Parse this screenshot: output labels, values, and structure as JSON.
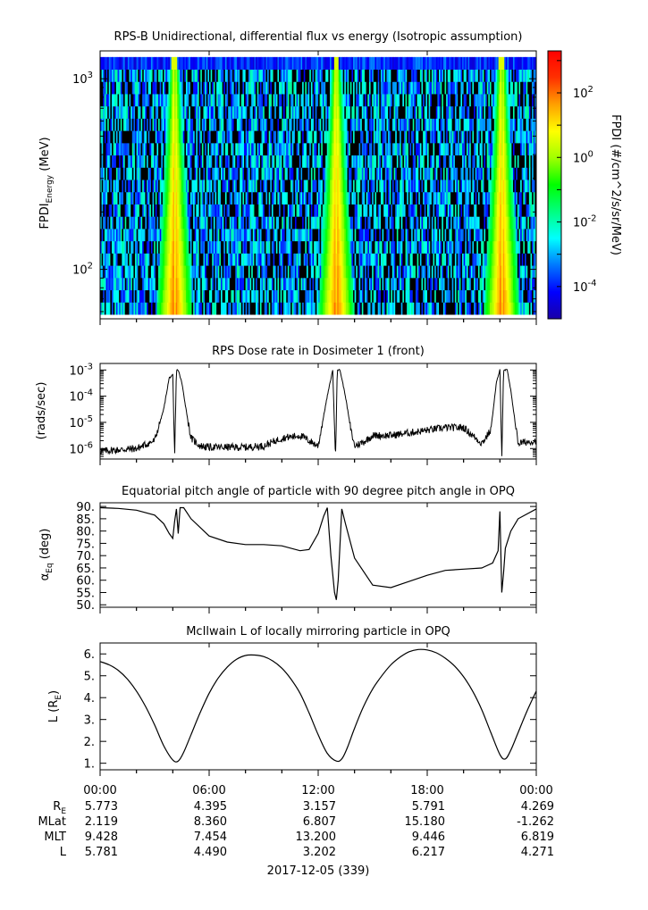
{
  "colors": {
    "background": "#ffffff",
    "ink": "#000000",
    "spectrogram_dark": "#000000",
    "colorbar_stops": [
      "#1a00a8",
      "#0000ff",
      "#0078ff",
      "#00ffff",
      "#00ff80",
      "#00ff00",
      "#a0ff00",
      "#ffff00",
      "#ffa000",
      "#ff3000",
      "#ff0000"
    ]
  },
  "chart_data": [
    {
      "id": "panel-flux",
      "type": "heatmap",
      "title": "RPS-B  Unidirectional, differential flux vs energy (Isotropic assumption)",
      "ylabel": "FPDI",
      "ylabel_sub": "Energy",
      "ylabel_unit": "(MeV)",
      "yscale": "log",
      "ylim": [
        55,
        1400
      ],
      "yticks": [
        {
          "base": "10",
          "exp": "2",
          "value": 100
        },
        {
          "base": "10",
          "exp": "3",
          "value": 1000
        }
      ],
      "energy_top": 1300,
      "energy_bottom": 58,
      "energy_bins": 21,
      "time_bins": 300,
      "xlim_hours": [
        0,
        24
      ],
      "radiation_belt_passes_hours": [
        4.1,
        13.0,
        22.1
      ],
      "colorbar": {
        "label": "FPDI (#/cm^2/s/sr/MeV)",
        "scale": "log",
        "range_exp": [
          -5,
          3.3
        ],
        "ticks": [
          {
            "base": "10",
            "exp": "-4",
            "value_exp": -4
          },
          {
            "base": "10",
            "exp": "-2",
            "value_exp": -2
          },
          {
            "base": "10",
            "exp": "0",
            "value_exp": 0
          },
          {
            "base": "10",
            "exp": "2",
            "value_exp": 2
          }
        ]
      }
    },
    {
      "id": "panel-dose",
      "type": "line",
      "title": "RPS  Dose rate in Dosimeter 1 (front)",
      "ylabel": "(rads/sec)",
      "yscale": "log",
      "ylim_exp": [
        -6.4,
        -2.75
      ],
      "yticks": [
        {
          "base": "10",
          "exp": "-6",
          "value_exp": -6
        },
        {
          "base": "10",
          "exp": "-5",
          "value_exp": -5
        },
        {
          "base": "10",
          "exp": "-4",
          "value_exp": -4
        },
        {
          "base": "10",
          "exp": "-3",
          "value_exp": -3
        }
      ],
      "x_hours": [
        0,
        1,
        2,
        3,
        3.5,
        3.8,
        4.0,
        4.1,
        4.2,
        4.3,
        4.5,
        4.8,
        5.0,
        5.5,
        6,
        7,
        8,
        9,
        10,
        11,
        12,
        12.5,
        12.8,
        12.95,
        13.05,
        13.2,
        13.5,
        13.8,
        14,
        14.5,
        15,
        16,
        17,
        18,
        19,
        20,
        21,
        21.5,
        21.8,
        22.0,
        22.1,
        22.2,
        22.4,
        22.6,
        23,
        24
      ],
      "values_log10": [
        -6.1,
        -6.05,
        -6.0,
        -5.7,
        -4.5,
        -3.3,
        -3.2,
        -6.4,
        -3.0,
        -3.0,
        -3.5,
        -4.8,
        -5.6,
        -5.9,
        -5.95,
        -5.95,
        -5.95,
        -5.9,
        -5.6,
        -5.5,
        -5.9,
        -4.0,
        -3.0,
        -6.4,
        -3.0,
        -3.0,
        -4.0,
        -5.3,
        -5.9,
        -5.75,
        -5.5,
        -5.5,
        -5.4,
        -5.3,
        -5.2,
        -5.2,
        -5.8,
        -5.3,
        -3.5,
        -3.0,
        -6.4,
        -3.0,
        -3.0,
        -3.8,
        -5.8,
        -5.7
      ]
    },
    {
      "id": "panel-pitch",
      "type": "line",
      "title": "Equatorial pitch angle of particle with 90 degree pitch angle in OPQ",
      "ylabel": "α",
      "ylabel_sub": "Eq",
      "ylabel_unit": "(deg)",
      "ylim": [
        49,
        91.5
      ],
      "ytick_labels": [
        "90.",
        "85.",
        "80.",
        "75.",
        "70.",
        "65.",
        "60.",
        "55.",
        "50."
      ],
      "ytick_values": [
        90,
        85,
        80,
        75,
        70,
        65,
        60,
        55,
        50
      ],
      "x_hours": [
        0,
        1,
        2,
        3,
        3.5,
        3.8,
        4.0,
        4.1,
        4.2,
        4.3,
        4.4,
        4.6,
        5,
        6,
        7,
        8,
        9,
        10,
        11,
        11.5,
        12,
        12.3,
        12.5,
        12.7,
        12.9,
        13.0,
        13.1,
        13.3,
        13.5,
        14,
        15,
        16,
        17,
        18,
        19,
        20,
        21,
        21.6,
        21.9,
        22.0,
        22.1,
        22.2,
        22.3,
        22.6,
        23,
        24
      ],
      "values": [
        89.5,
        89.2,
        88.5,
        86.5,
        83,
        79,
        77,
        84,
        89,
        79,
        89.5,
        89.5,
        85,
        78,
        75.5,
        74.5,
        74.5,
        74,
        72,
        72.5,
        79,
        86,
        89.5,
        70,
        55,
        52,
        60,
        89,
        83,
        69,
        58,
        57,
        59.5,
        62,
        64,
        64.5,
        65,
        67,
        72,
        88,
        55,
        63,
        73,
        80,
        85,
        89
      ]
    },
    {
      "id": "panel-lshell",
      "type": "line",
      "title": "McIlwain L of locally mirroring particle in OPQ",
      "ylabel": "L (R",
      "ylabel_sub": "E",
      "ylabel_close": ")",
      "ylim": [
        0.7,
        6.5
      ],
      "ytick_labels": [
        "6.",
        "5.",
        "4.",
        "3.",
        "2.",
        "1."
      ],
      "ytick_values": [
        6,
        5,
        4,
        3,
        2,
        1
      ],
      "x_hours": [
        0,
        0.5,
        1,
        1.5,
        2,
        2.5,
        3,
        3.5,
        4.0,
        4.3,
        4.6,
        5,
        5.5,
        6,
        6.5,
        7,
        7.5,
        8,
        8.5,
        9,
        9.5,
        10,
        10.5,
        11,
        11.5,
        12,
        12.5,
        13.0,
        13.3,
        13.6,
        14,
        14.5,
        15,
        15.5,
        16,
        16.5,
        17,
        17.5,
        18,
        18.5,
        19,
        19.5,
        20,
        20.5,
        21,
        21.5,
        22.0,
        22.3,
        22.6,
        23,
        23.5,
        24
      ],
      "values": [
        5.65,
        5.5,
        5.25,
        4.85,
        4.3,
        3.6,
        2.75,
        1.8,
        1.15,
        1.1,
        1.5,
        2.3,
        3.3,
        4.2,
        4.9,
        5.4,
        5.75,
        5.93,
        5.95,
        5.88,
        5.68,
        5.35,
        4.85,
        4.2,
        3.3,
        2.3,
        1.45,
        1.1,
        1.2,
        1.7,
        2.6,
        3.6,
        4.4,
        5.0,
        5.5,
        5.85,
        6.1,
        6.2,
        6.18,
        6.05,
        5.8,
        5.45,
        4.95,
        4.3,
        3.45,
        2.4,
        1.4,
        1.2,
        1.6,
        2.4,
        3.4,
        4.3
      ]
    }
  ],
  "time_axis": {
    "ticks": [
      "00:00",
      "06:00",
      "12:00",
      "18:00",
      "00:00"
    ],
    "rows": [
      {
        "label": "R",
        "label_sub": "E",
        "values": [
          "5.773",
          "4.395",
          "3.157",
          "5.791",
          "4.269"
        ]
      },
      {
        "label": "MLat",
        "values": [
          "2.119",
          "8.360",
          "6.807",
          "15.180",
          "-1.262"
        ]
      },
      {
        "label": "MLT",
        "values": [
          "9.428",
          "7.454",
          "13.200",
          "9.446",
          "6.819"
        ]
      },
      {
        "label": "L",
        "values": [
          "5.781",
          "4.490",
          "3.202",
          "6.217",
          "4.271"
        ]
      }
    ],
    "date_label": "2017-12-05 (339)"
  }
}
